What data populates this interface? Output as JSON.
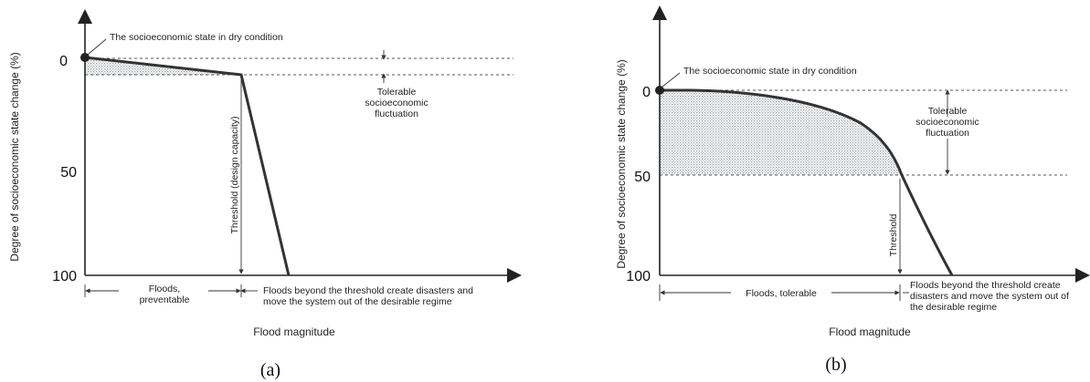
{
  "panels": [
    {
      "id": "a",
      "caption": "(a)",
      "ylabel": "Degree of  socioeconomic state change (%)",
      "xlabel": "Flood magnitude",
      "yticks": [
        "0",
        "50",
        "100"
      ],
      "dry_state_label": "The socioeconomic state in dry condition",
      "tolerable_label": [
        "Tolerable",
        "socioeconomic",
        "fluctuation"
      ],
      "threshold_label": "Threshold (design capacity)",
      "left_range_label": [
        "Floods,",
        "preventable"
      ],
      "right_range_label": [
        "Floods beyond the threshold create disasters and",
        "move the system out of the desirable regime"
      ]
    },
    {
      "id": "b",
      "caption": "(b)",
      "ylabel": "Degree of  socioeconomic state change (%)",
      "xlabel": "Flood magnitude",
      "yticks": [
        "0",
        "50",
        "100"
      ],
      "dry_state_label": "The socioeconomic state in dry condition",
      "tolerable_label": [
        "Tolerable",
        "socioeconomic",
        "fluctuation"
      ],
      "threshold_label": "Threshold",
      "left_range_label": [
        "Floods, tolerable"
      ],
      "right_range_label": [
        "Floods beyond the threshold create",
        "disasters and move the system out of",
        "the desirable regime"
      ]
    }
  ],
  "colors": {
    "curve": "#333333",
    "hatch": "#9aa4aa",
    "axis": "#222222"
  }
}
